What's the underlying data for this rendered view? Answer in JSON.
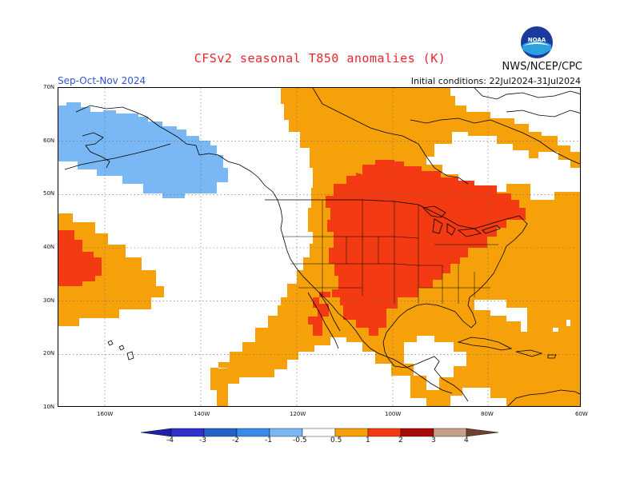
{
  "header": {
    "title": "CFSv2 seasonal T850 anomalies (K)",
    "agency": "NWS/NCEP/CPC",
    "season": "Sep-Oct-Nov 2024",
    "initial_conditions": "Initial conditions: 22Jul2024-31Jul2024",
    "logo_text": "NOAA"
  },
  "map": {
    "lat_labels": [
      "70N",
      "60N",
      "50N",
      "40N",
      "30N",
      "20N",
      "10N"
    ],
    "lon_labels": [
      "160W",
      "140W",
      "120W",
      "100W",
      "80W",
      "60W"
    ]
  },
  "colorbar": {
    "ticks": [
      "-4",
      "-3",
      "-2",
      "-1",
      "-0.5",
      "0.5",
      "1",
      "2",
      "3",
      "4"
    ],
    "colors": [
      "#2020a8",
      "#3030c8",
      "#2262c8",
      "#3a8ae8",
      "#7ab8f5",
      "#ffffff",
      "#f7a10a",
      "#f33a13",
      "#a60b0b",
      "#c8a08a",
      "#6d4030"
    ]
  }
}
